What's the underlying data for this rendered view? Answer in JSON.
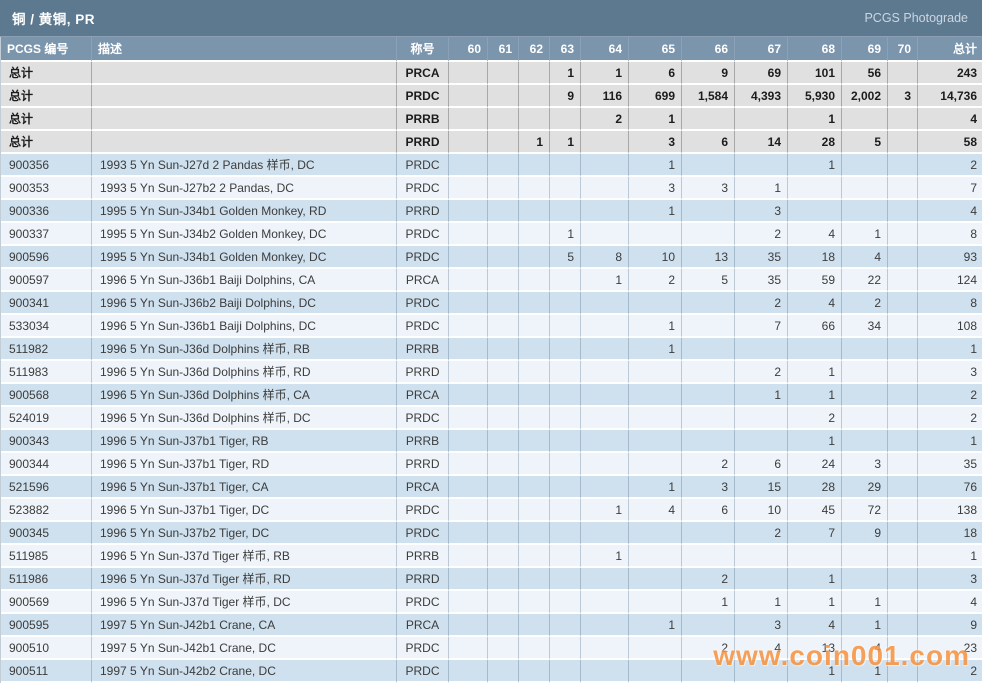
{
  "title_bar": {
    "title": "铜 / 黄铜, PR",
    "right_label": "PCGS Photograde"
  },
  "watermark": "www.coin001.com",
  "colors": {
    "titlebar_bg": "#5d7990",
    "header_bg": "#7b95ad",
    "total_row_bg": "#e0e0e0",
    "row_blue_bg": "#cfe0ee",
    "row_white_bg": "#eef4f9",
    "pcgs_number": "#b26e4f",
    "watermark_orange": "#f79443"
  },
  "table": {
    "columns": [
      "PCGS 编号",
      "描述",
      "称号",
      "60",
      "61",
      "62",
      "63",
      "64",
      "65",
      "66",
      "67",
      "68",
      "69",
      "70",
      "总计"
    ],
    "total_rows": [
      {
        "label": "总计",
        "description": "",
        "designation": "PRCA",
        "values": [
          "",
          "",
          "",
          "1",
          "1",
          "6",
          "9",
          "69",
          "101",
          "56",
          ""
        ],
        "total": "243"
      },
      {
        "label": "总计",
        "description": "",
        "designation": "PRDC",
        "values": [
          "",
          "",
          "",
          "9",
          "116",
          "699",
          "1,584",
          "4,393",
          "5,930",
          "2,002",
          "3"
        ],
        "total": "14,736"
      },
      {
        "label": "总计",
        "description": "",
        "designation": "PRRB",
        "values": [
          "",
          "",
          "",
          "",
          "2",
          "1",
          "",
          "",
          "1",
          "",
          ""
        ],
        "total": "4"
      },
      {
        "label": "总计",
        "description": "",
        "designation": "PRRD",
        "values": [
          "",
          "",
          "1",
          "1",
          "",
          "3",
          "6",
          "14",
          "28",
          "5",
          ""
        ],
        "total": "58"
      }
    ],
    "rows": [
      {
        "pcgs": "900356",
        "description": "1993 5 Yn Sun-J27d 2 Pandas 样币, DC",
        "designation": "PRDC",
        "values": [
          "",
          "",
          "",
          "",
          "",
          "1",
          "",
          "",
          "1",
          "",
          ""
        ],
        "total": "2"
      },
      {
        "pcgs": "900353",
        "description": "1993 5 Yn Sun-J27b2 2 Pandas, DC",
        "designation": "PRDC",
        "values": [
          "",
          "",
          "",
          "",
          "",
          "3",
          "3",
          "1",
          "",
          "",
          ""
        ],
        "total": "7"
      },
      {
        "pcgs": "900336",
        "description": "1995 5 Yn Sun-J34b1 Golden Monkey, RD",
        "designation": "PRRD",
        "values": [
          "",
          "",
          "",
          "",
          "",
          "1",
          "",
          "3",
          "",
          "",
          ""
        ],
        "total": "4"
      },
      {
        "pcgs": "900337",
        "description": "1995 5 Yn Sun-J34b2 Golden Monkey, DC",
        "designation": "PRDC",
        "values": [
          "",
          "",
          "",
          "1",
          "",
          "",
          "",
          "2",
          "4",
          "1",
          ""
        ],
        "total": "8"
      },
      {
        "pcgs": "900596",
        "description": "1995 5 Yn Sun-J34b1 Golden Monkey, DC",
        "designation": "PRDC",
        "values": [
          "",
          "",
          "",
          "5",
          "8",
          "10",
          "13",
          "35",
          "18",
          "4",
          ""
        ],
        "total": "93"
      },
      {
        "pcgs": "900597",
        "description": "1996 5 Yn Sun-J36b1 Baiji Dolphins, CA",
        "designation": "PRCA",
        "values": [
          "",
          "",
          "",
          "",
          "1",
          "2",
          "5",
          "35",
          "59",
          "22",
          ""
        ],
        "total": "124"
      },
      {
        "pcgs": "900341",
        "description": "1996 5 Yn Sun-J36b2 Baiji Dolphins, DC",
        "designation": "PRDC",
        "values": [
          "",
          "",
          "",
          "",
          "",
          "",
          "",
          "2",
          "4",
          "2",
          ""
        ],
        "total": "8"
      },
      {
        "pcgs": "533034",
        "description": "1996 5 Yn Sun-J36b1 Baiji Dolphins, DC",
        "designation": "PRDC",
        "values": [
          "",
          "",
          "",
          "",
          "",
          "1",
          "",
          "7",
          "66",
          "34",
          ""
        ],
        "total": "108"
      },
      {
        "pcgs": "511982",
        "description": "1996 5 Yn Sun-J36d Dolphins 样币, RB",
        "designation": "PRRB",
        "values": [
          "",
          "",
          "",
          "",
          "",
          "1",
          "",
          "",
          "",
          "",
          ""
        ],
        "total": "1"
      },
      {
        "pcgs": "511983",
        "description": "1996 5 Yn Sun-J36d Dolphins 样币, RD",
        "designation": "PRRD",
        "values": [
          "",
          "",
          "",
          "",
          "",
          "",
          "",
          "2",
          "1",
          "",
          ""
        ],
        "total": "3"
      },
      {
        "pcgs": "900568",
        "description": "1996 5 Yn Sun-J36d Dolphins 样币, CA",
        "designation": "PRCA",
        "values": [
          "",
          "",
          "",
          "",
          "",
          "",
          "",
          "1",
          "1",
          "",
          ""
        ],
        "total": "2"
      },
      {
        "pcgs": "524019",
        "description": "1996 5 Yn Sun-J36d Dolphins 样币, DC",
        "designation": "PRDC",
        "values": [
          "",
          "",
          "",
          "",
          "",
          "",
          "",
          "",
          "2",
          "",
          ""
        ],
        "total": "2"
      },
      {
        "pcgs": "900343",
        "description": "1996 5 Yn Sun-J37b1 Tiger, RB",
        "designation": "PRRB",
        "values": [
          "",
          "",
          "",
          "",
          "",
          "",
          "",
          "",
          "1",
          "",
          ""
        ],
        "total": "1"
      },
      {
        "pcgs": "900344",
        "description": "1996 5 Yn Sun-J37b1 Tiger, RD",
        "designation": "PRRD",
        "values": [
          "",
          "",
          "",
          "",
          "",
          "",
          "2",
          "6",
          "24",
          "3",
          ""
        ],
        "total": "35"
      },
      {
        "pcgs": "521596",
        "description": "1996 5 Yn Sun-J37b1 Tiger, CA",
        "designation": "PRCA",
        "values": [
          "",
          "",
          "",
          "",
          "",
          "1",
          "3",
          "15",
          "28",
          "29",
          ""
        ],
        "total": "76"
      },
      {
        "pcgs": "523882",
        "description": "1996 5 Yn Sun-J37b1 Tiger, DC",
        "designation": "PRDC",
        "values": [
          "",
          "",
          "",
          "",
          "1",
          "4",
          "6",
          "10",
          "45",
          "72",
          ""
        ],
        "total": "138"
      },
      {
        "pcgs": "900345",
        "description": "1996 5 Yn Sun-J37b2 Tiger, DC",
        "designation": "PRDC",
        "values": [
          "",
          "",
          "",
          "",
          "",
          "",
          "",
          "2",
          "7",
          "9",
          ""
        ],
        "total": "18"
      },
      {
        "pcgs": "511985",
        "description": "1996 5 Yn Sun-J37d Tiger 样币, RB",
        "designation": "PRRB",
        "values": [
          "",
          "",
          "",
          "",
          "1",
          "",
          "",
          "",
          "",
          "",
          ""
        ],
        "total": "1"
      },
      {
        "pcgs": "511986",
        "description": "1996 5 Yn Sun-J37d Tiger 样币, RD",
        "designation": "PRRD",
        "values": [
          "",
          "",
          "",
          "",
          "",
          "",
          "2",
          "",
          "1",
          "",
          ""
        ],
        "total": "3"
      },
      {
        "pcgs": "900569",
        "description": "1996 5 Yn Sun-J37d Tiger 样币, DC",
        "designation": "PRDC",
        "values": [
          "",
          "",
          "",
          "",
          "",
          "",
          "1",
          "1",
          "1",
          "1",
          ""
        ],
        "total": "4"
      },
      {
        "pcgs": "900595",
        "description": "1997 5 Yn Sun-J42b1 Crane, CA",
        "designation": "PRCA",
        "values": [
          "",
          "",
          "",
          "",
          "",
          "1",
          "",
          "3",
          "4",
          "1",
          ""
        ],
        "total": "9"
      },
      {
        "pcgs": "900510",
        "description": "1997 5 Yn Sun-J42b1 Crane, DC",
        "designation": "PRDC",
        "values": [
          "",
          "",
          "",
          "",
          "",
          "",
          "2",
          "4",
          "13",
          "4",
          ""
        ],
        "total": "23"
      },
      {
        "pcgs": "900511",
        "description": "1997 5 Yn Sun-J42b2 Crane, DC",
        "designation": "PRDC",
        "values": [
          "",
          "",
          "",
          "",
          "",
          "",
          "",
          "",
          "1",
          "1",
          ""
        ],
        "total": "2"
      }
    ]
  }
}
